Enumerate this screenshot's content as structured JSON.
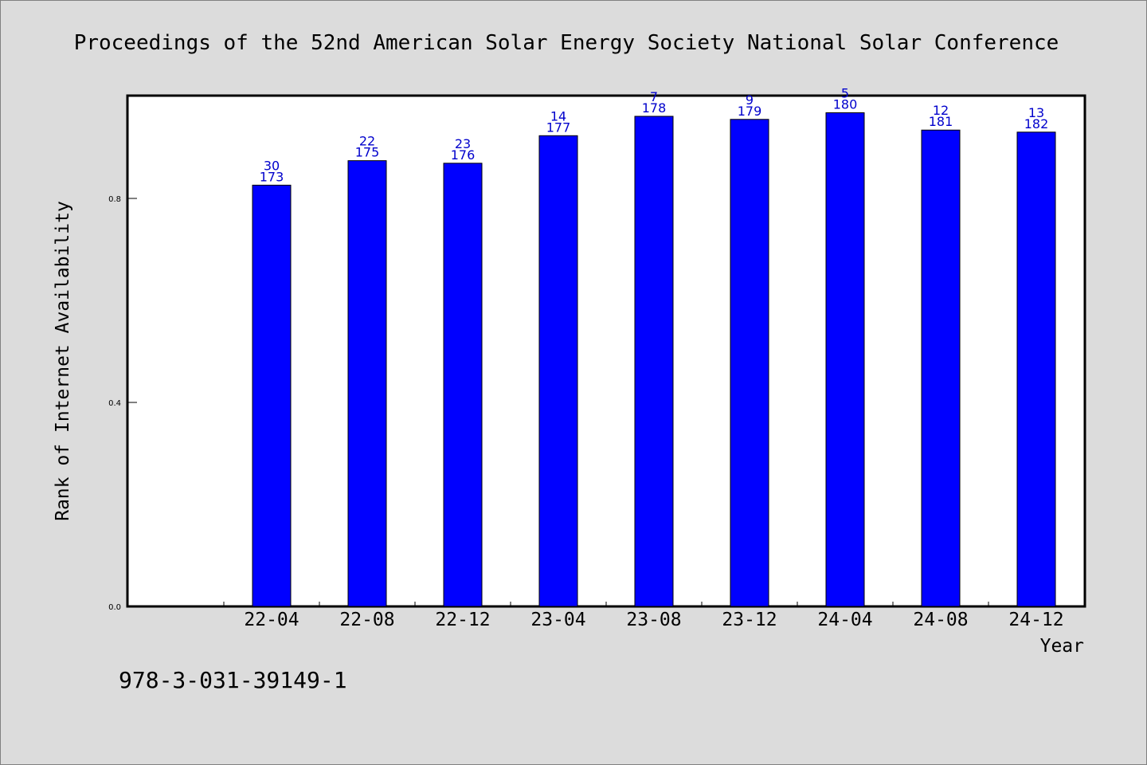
{
  "chart_data": {
    "type": "bar",
    "title": "Proceedings of the 52nd American Solar Energy Society National Solar Conference",
    "xlabel": "Year",
    "ylabel": "Rank of Internet Availability",
    "ylim": [
      0,
      1.0
    ],
    "yticks": [
      "0.0",
      "0.4",
      "0.8"
    ],
    "ytick_values": [
      0.0,
      0.4,
      0.8
    ],
    "categories": [
      "22-04",
      "22-08",
      "22-12",
      "23-04",
      "23-08",
      "23-12",
      "24-04",
      "24-08",
      "24-12"
    ],
    "values": [
      0.826,
      0.874,
      0.869,
      0.923,
      0.961,
      0.955,
      0.968,
      0.934,
      0.93
    ],
    "rank_labels": [
      "30",
      "22",
      "23",
      "14",
      "7",
      "9",
      "5",
      "12",
      "13"
    ],
    "total_labels": [
      "173",
      "175",
      "176",
      "177",
      "178",
      "179",
      "180",
      "181",
      "182"
    ],
    "bar_color": "#0000ff",
    "label_color": "#0000cc",
    "grid": false,
    "legend": "none"
  },
  "footer": {
    "isbn": "978-3-031-39149-1"
  }
}
